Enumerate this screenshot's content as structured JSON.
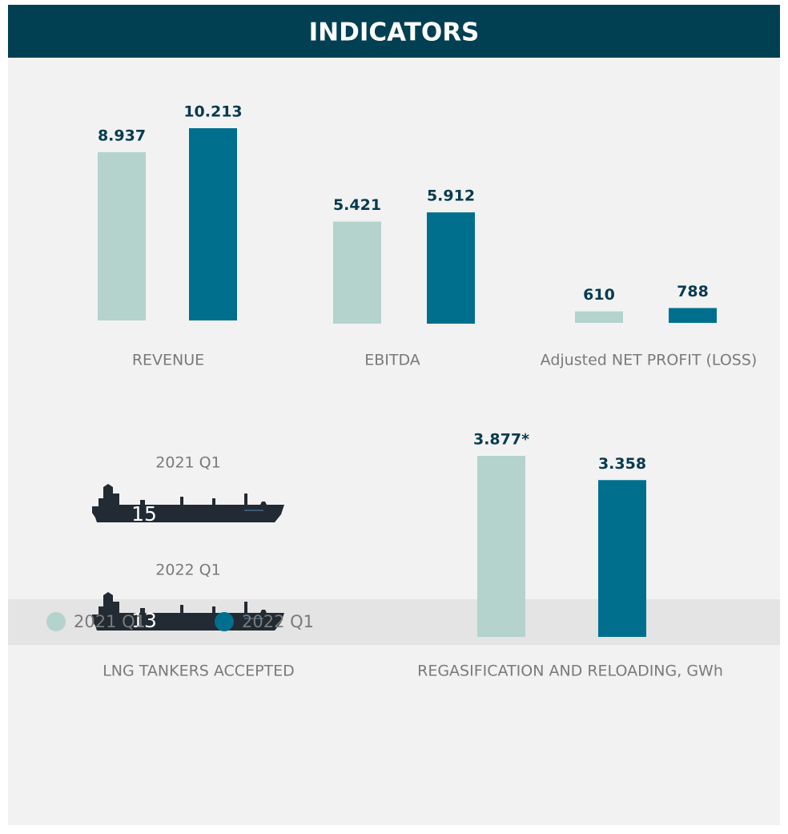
{
  "title": "INDICATORS",
  "legend": [
    {
      "name": "2021 Q1",
      "color": "#b3d3cc"
    },
    {
      "name": "2022 Q1",
      "color": "#006f8e"
    }
  ],
  "chart_data": [
    {
      "type": "bar",
      "label": "REVENUE",
      "values": [
        8937,
        10213
      ],
      "value_labels": [
        "8.937",
        "10.213"
      ]
    },
    {
      "type": "bar",
      "label": "EBITDA",
      "values": [
        5421,
        5912
      ],
      "value_labels": [
        "5.421",
        "5.912"
      ]
    },
    {
      "type": "bar",
      "label": "Adjusted NET PROFIT (LOSS)",
      "values": [
        610,
        788
      ]
    },
    {
      "type": "pictogram",
      "label": "LNG TANKERS ACCEPTED",
      "categories": [
        "2021 Q1",
        "2022 Q1"
      ],
      "values": [
        15,
        13
      ]
    },
    {
      "type": "bar",
      "label": "REGASIFICATION AND RELOADING, GWh",
      "values": [
        3877,
        3358
      ],
      "value_labels": [
        "3.877*",
        "3.358"
      ]
    }
  ]
}
